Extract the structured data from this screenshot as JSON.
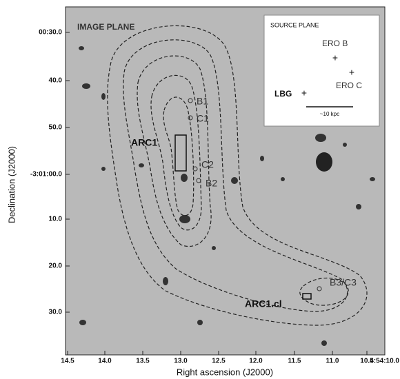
{
  "figure": {
    "panel_label": "IMAGE PLANE",
    "inset": {
      "title": "SOURCE PLANE",
      "labels": [
        "ERO B",
        "ERO C",
        "LBG"
      ],
      "scale_label": "~10 kpc"
    },
    "annotations": [
      "B1",
      "C1",
      "ARC1",
      "C2",
      "B2",
      "B3/C3",
      "ARC1.cl"
    ],
    "x_axis": {
      "label": "Right ascension (J2000)",
      "ticks": [
        "14.5",
        "14.0",
        "13.5",
        "13.0",
        "12.5",
        "12.0",
        "11.5",
        "11.0",
        "10.5",
        "4:54:10.0"
      ]
    },
    "y_axis": {
      "label": "Declination (J2000)",
      "ticks": [
        "00:30.0",
        "40.0",
        "50.0",
        "-3:01:00.0",
        "10.0",
        "20.0",
        "30.0"
      ]
    }
  }
}
